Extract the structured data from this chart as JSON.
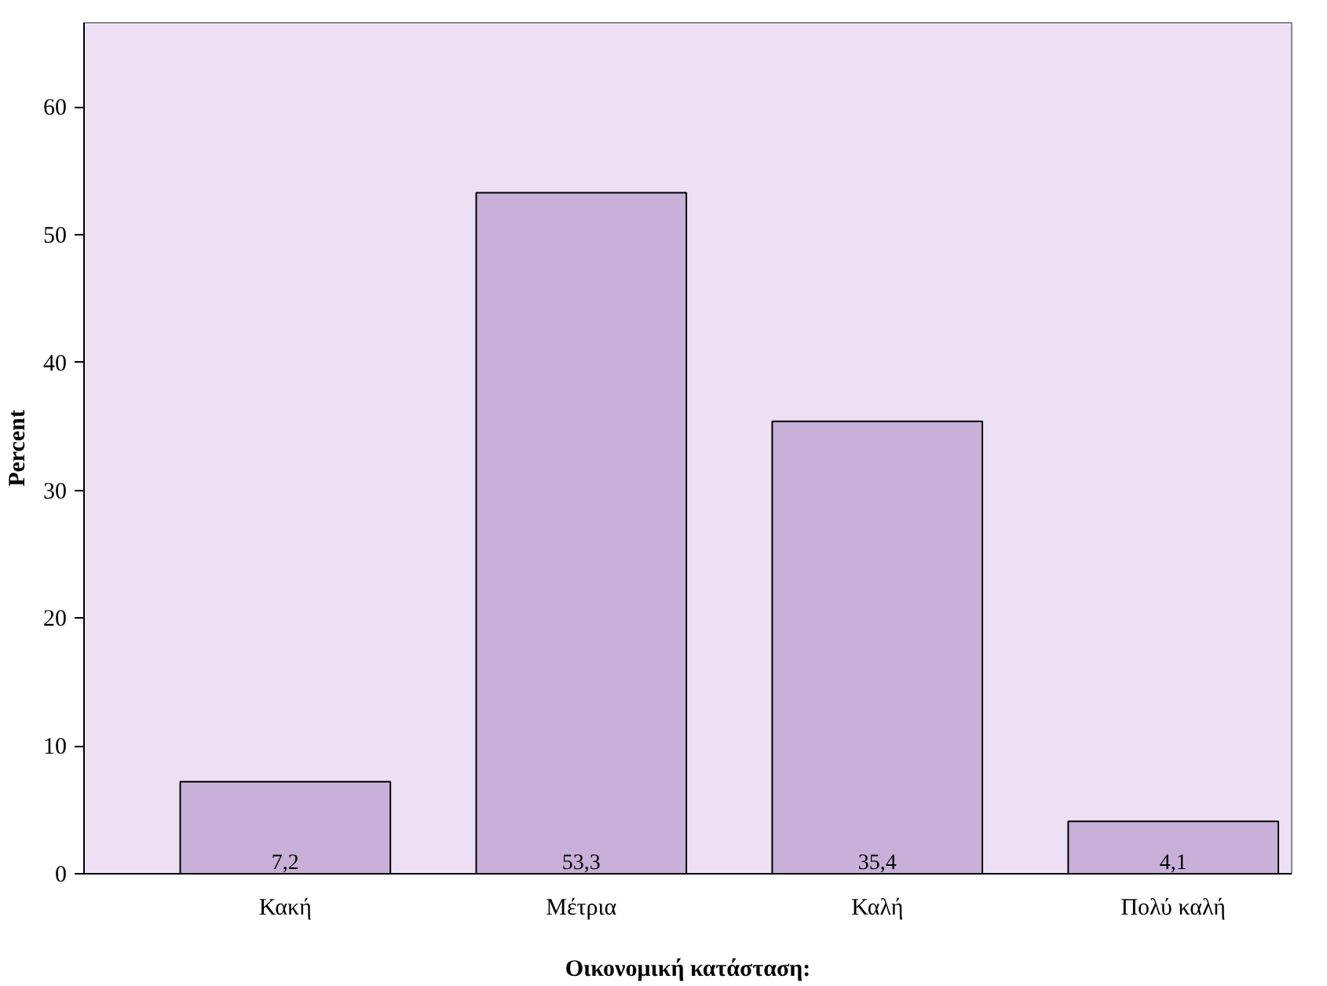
{
  "chart_data": {
    "type": "bar",
    "xlabel": "Οικονομική κατάσταση:",
    "ylabel": "Percent",
    "categories": [
      "Κακή",
      "Μέτρια",
      "Καλή",
      "Πολύ καλή"
    ],
    "values": [
      7.2,
      53.3,
      35.4,
      4.1
    ],
    "value_labels": [
      "7,2",
      "53,3",
      "35,4",
      "4,1"
    ],
    "color": "#c8b0d8",
    "ylim": [
      0,
      66.6
    ],
    "yticks": [
      0,
      10,
      20,
      30,
      40,
      50,
      60
    ],
    "grid": false
  }
}
